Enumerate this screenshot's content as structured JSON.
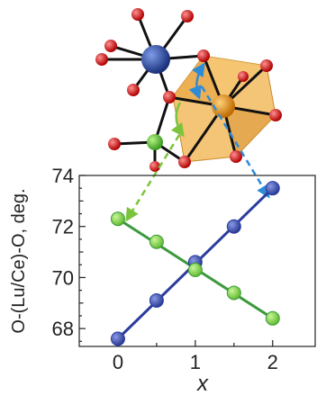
{
  "chart_data": {
    "type": "line",
    "xlabel": "x",
    "ylabel": "O-(Lu/Ce)-O, deg.",
    "xlim": [
      -0.5,
      2.55
    ],
    "ylim": [
      67.3,
      74
    ],
    "x_ticks": [
      "0",
      "1",
      "2"
    ],
    "y_ticks": [
      "68",
      "70",
      "72",
      "74"
    ],
    "x_tick_values": [
      0,
      1,
      2
    ],
    "y_tick_values": [
      68,
      70,
      72,
      74
    ],
    "grid": false,
    "legend": "none",
    "series": [
      {
        "color": "#2b3d9e",
        "x": [
          0,
          0.5,
          1,
          1.5,
          2
        ],
        "y": [
          67.6,
          69.1,
          70.6,
          72.0,
          73.5
        ],
        "fit": [
          [
            0,
            67.6
          ],
          [
            2,
            73.5
          ]
        ]
      },
      {
        "color": "#3c9a3c",
        "marker_color": "#78d23c",
        "x": [
          0,
          0.5,
          1,
          1.5,
          2
        ],
        "y": [
          72.3,
          71.4,
          70.3,
          69.4,
          68.4
        ],
        "fit": [
          [
            0,
            72.3
          ],
          [
            2,
            68.4
          ]
        ]
      }
    ]
  },
  "structure": {
    "cation_large_color": "#2a4aa0",
    "cation_medium_color": "#e08a1a",
    "cation_small_color": "#55c23a",
    "oxygen_color": "#d81e1e",
    "polyhedron_color": "#f0b04a",
    "arrow_blue_color": "#2e8bd8",
    "arrow_green_color": "#7cc43c"
  }
}
